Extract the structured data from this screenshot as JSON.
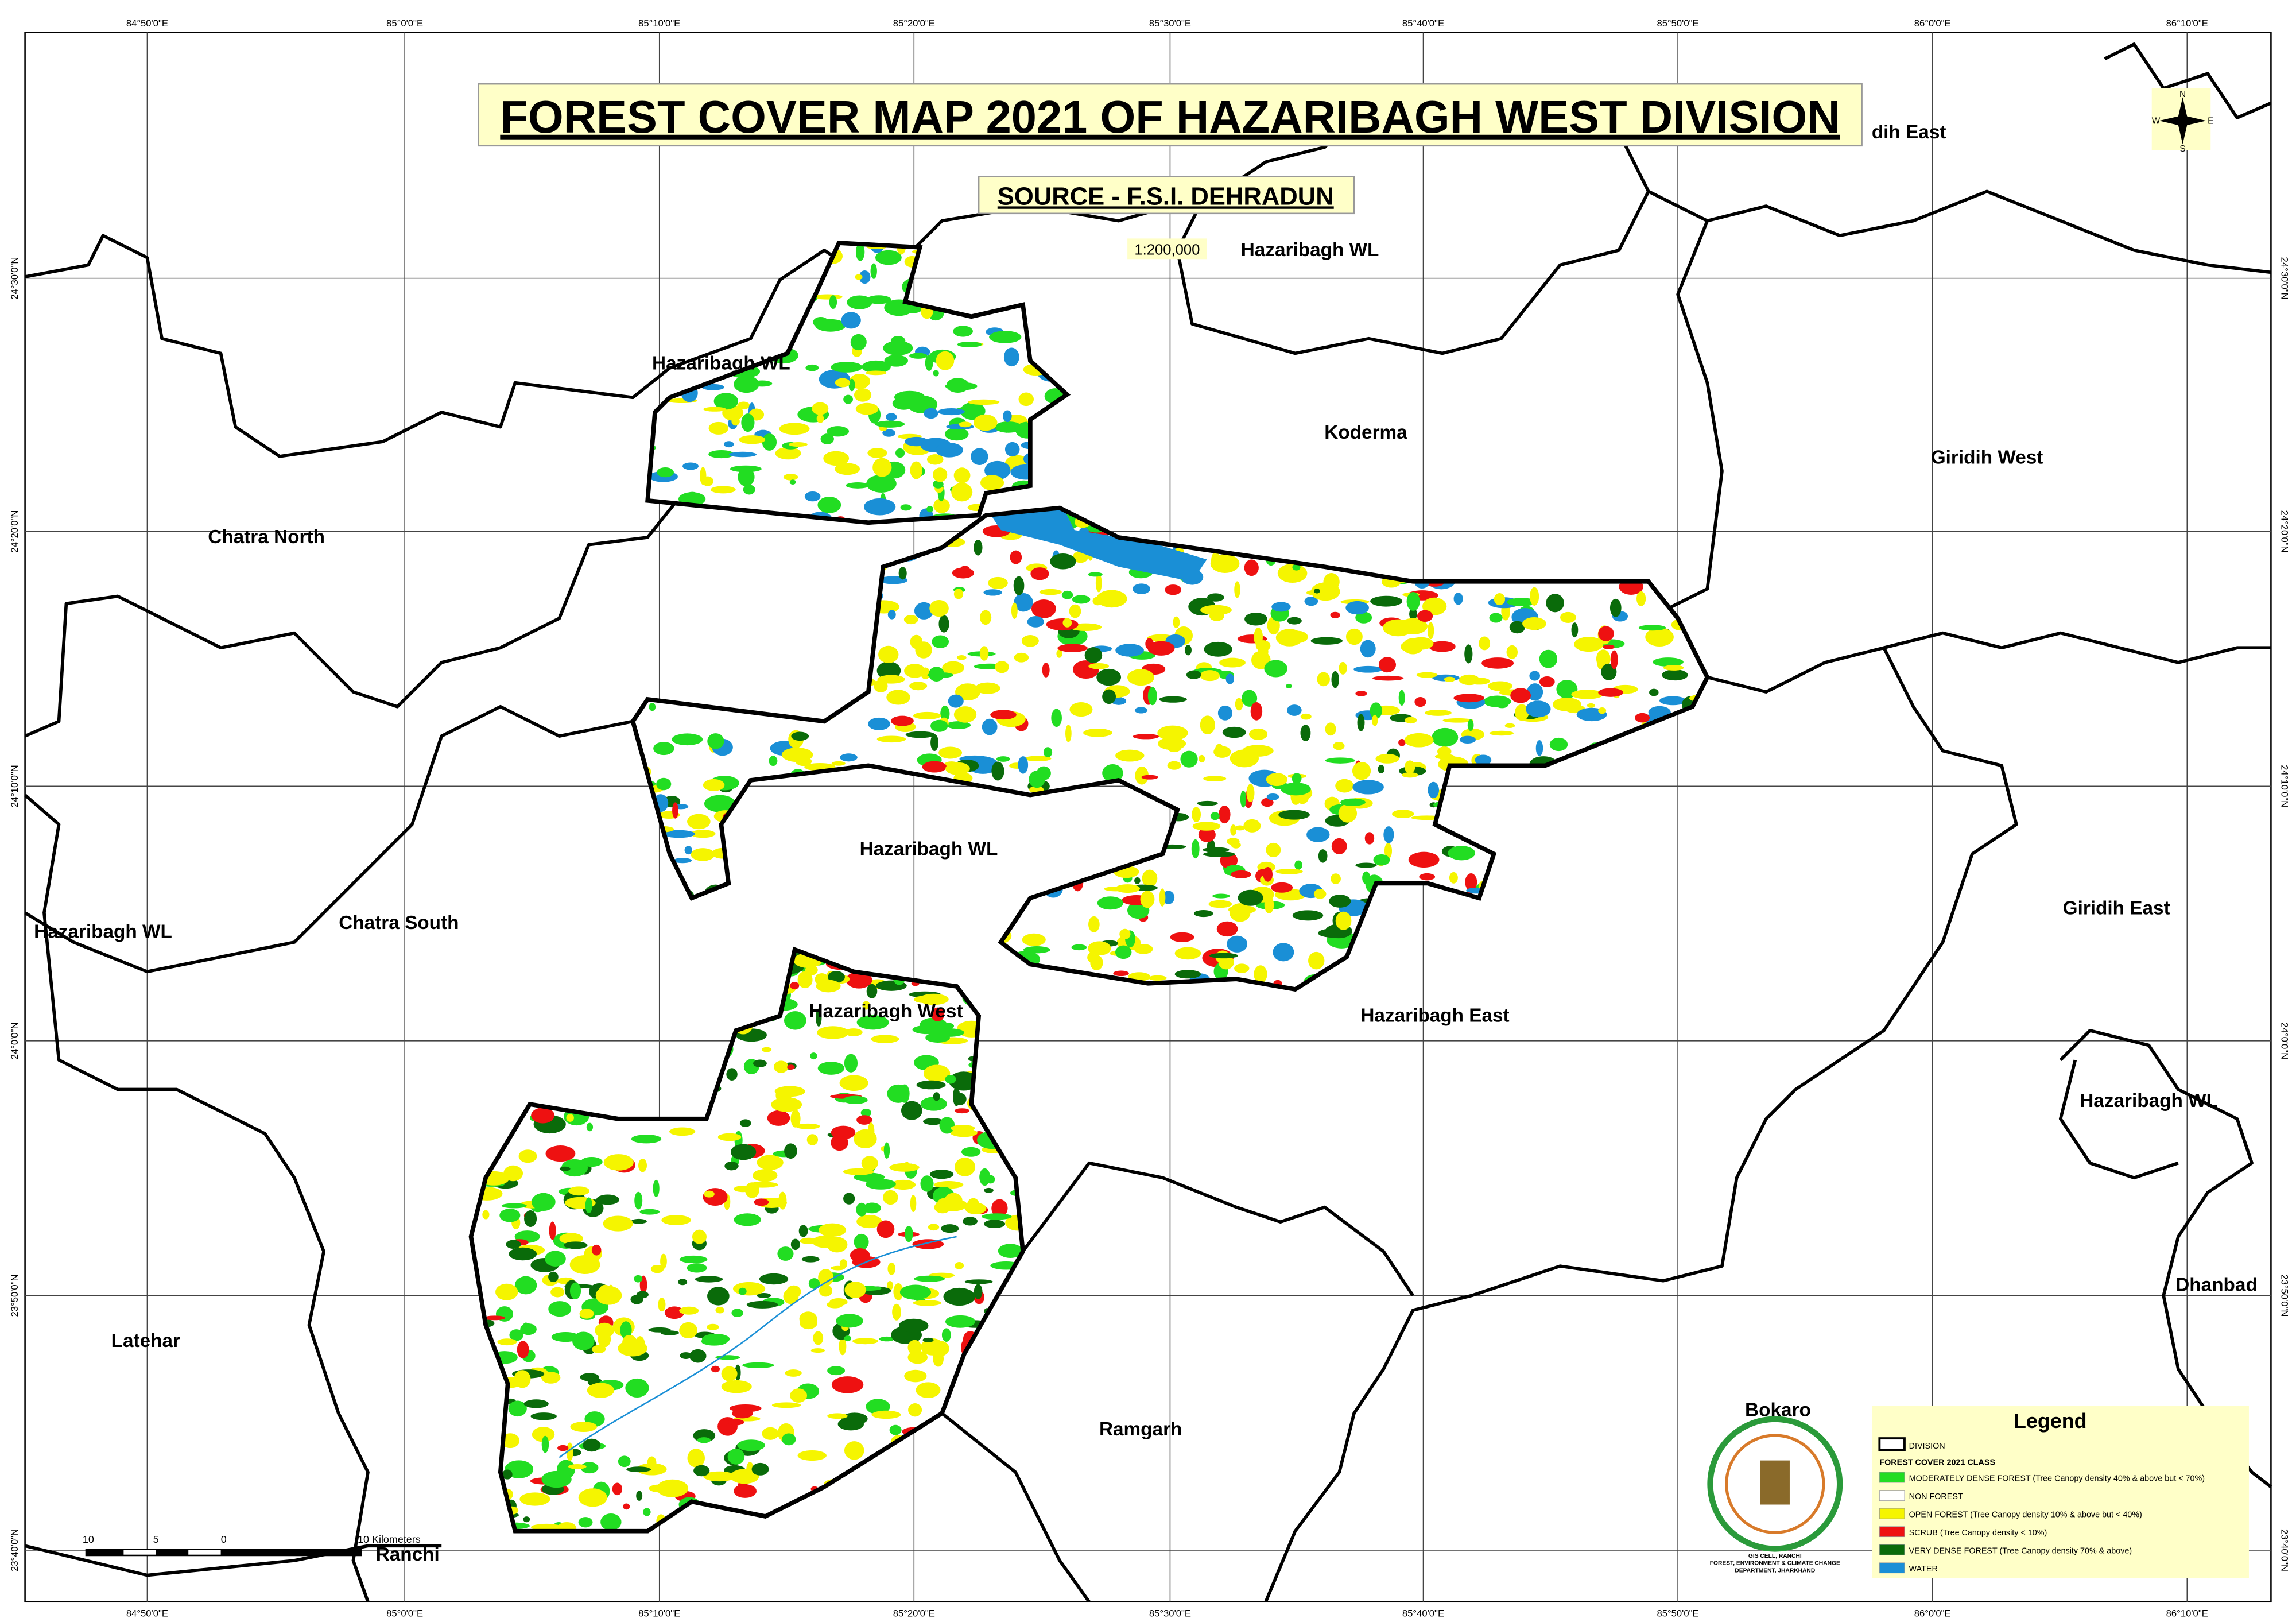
{
  "header": {
    "title": "FOREST COVER MAP 2021  OF HAZARIBAGH WEST DIVISION",
    "source": "SOURCE - F.S.I. DEHRADUN",
    "scale": "1:200,000"
  },
  "grid": {
    "longitudes": [
      "84°50'0\"E",
      "85°0'0\"E",
      "85°10'0\"E",
      "85°20'0\"E",
      "85°30'0\"E",
      "85°40'0\"E",
      "85°50'0\"E",
      "86°0'0\"E",
      "86°10'0\"E"
    ],
    "latitudes": [
      "24°30'0\"N",
      "24°20'0\"N",
      "24°10'0\"N",
      "24°0'0\"N",
      "23°50'0\"N",
      "23°40'0\"N"
    ]
  },
  "regions": [
    "dih East",
    "Hazaribagh WL",
    "Hazaribagh WL",
    "Koderma",
    "Giridih West",
    "Chatra North",
    "Hazaribagh WL",
    "Giridih East",
    "Chatra South",
    "Hazaribagh WL",
    "Hazaribagh West",
    "Hazaribagh East",
    "Hazaribagh WL",
    "Dhanbad",
    "Latehar",
    "Ramgarh",
    "Bokaro",
    "Ranchi"
  ],
  "compass": {
    "n": "N",
    "e": "E",
    "s": "S",
    "w": "W"
  },
  "scale_bar": {
    "labels": [
      "10",
      "5",
      "0",
      "10 Kilometers"
    ]
  },
  "emblem": {
    "line1": "GIS CELL, RANCHI",
    "line2": "FOREST, ENVIRONMENT & CLIMATE CHANGE",
    "line3": "DEPARTMENT, JHARKHAND"
  },
  "legend": {
    "title": "Legend",
    "division": "DIVISION",
    "class_title": "FOREST COVER 2021 CLASS",
    "items": [
      {
        "label": "MODERATELY DENSE FOREST (Tree Canopy density 40% & above but < 70%)",
        "color": "#22dd22"
      },
      {
        "label": "NON FOREST",
        "color": "#ffffff"
      },
      {
        "label": "OPEN FOREST (Tree Canopy density 10% & above but < 40%)",
        "color": "#f5f500"
      },
      {
        "label": "SCRUB (Tree Canopy density < 10%)",
        "color": "#ee1111"
      },
      {
        "label": "VERY DENSE FOREST (Tree Canopy density 70% & above)",
        "color": "#0a6b0a"
      },
      {
        "label": "WATER",
        "color": "#1a8fd6"
      }
    ]
  }
}
